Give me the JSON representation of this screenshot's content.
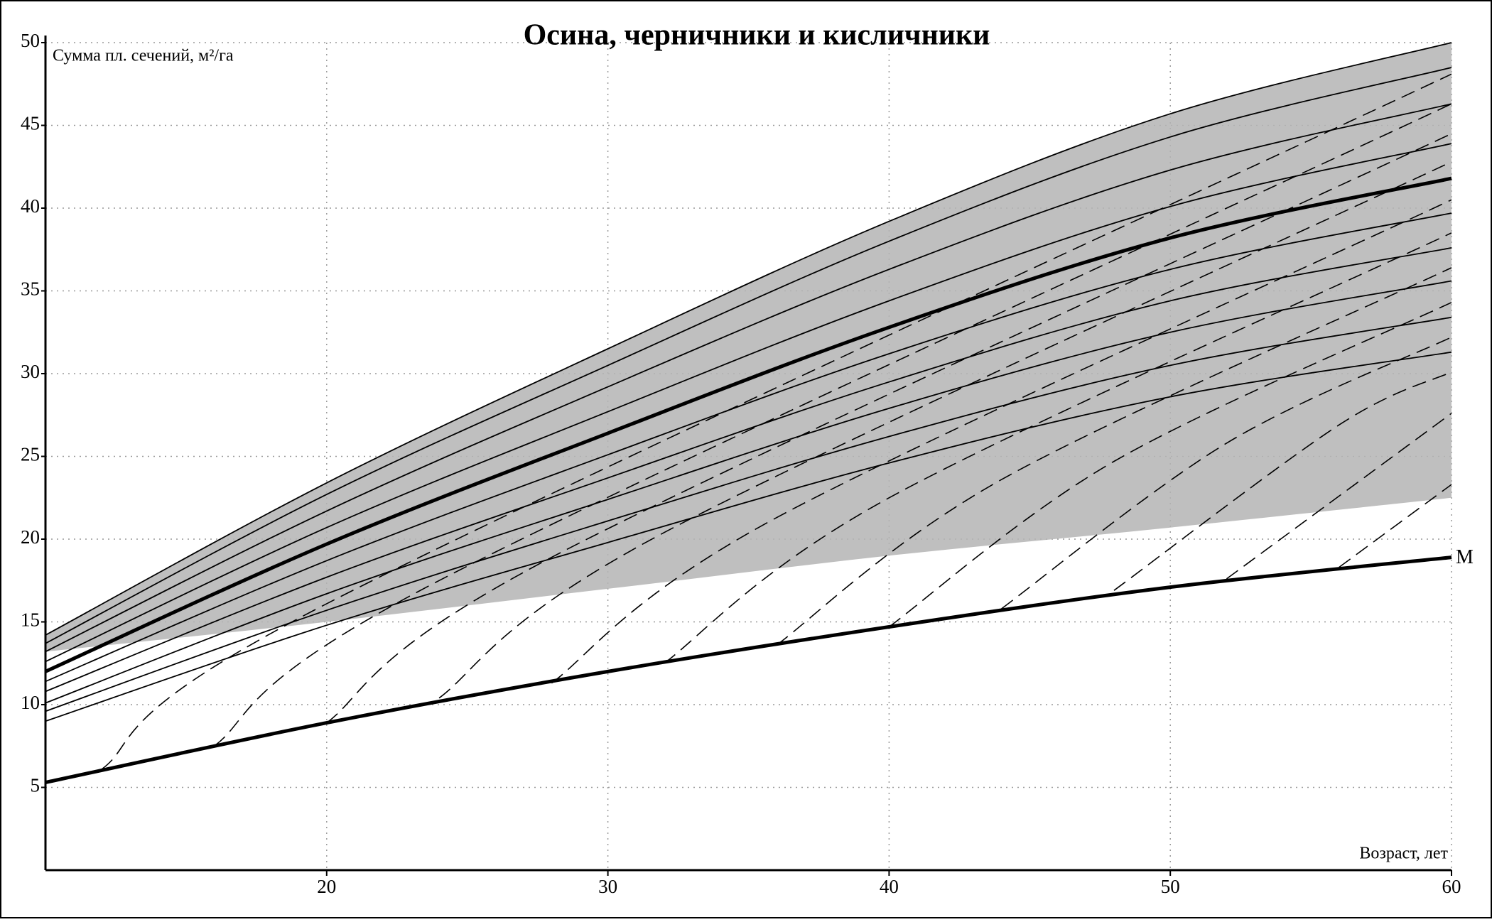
{
  "chart_data": {
    "type": "line",
    "title": "Осина, черничники и кисличники",
    "y_label": "Сумма пл. сечений, м²/га",
    "x_label": "Возраст, лет",
    "xlim": [
      10,
      60
    ],
    "ylim": [
      0,
      50
    ],
    "xticks": [
      20,
      30,
      40,
      50,
      60
    ],
    "yticks": [
      5,
      10,
      15,
      20,
      25,
      30,
      35,
      40,
      45,
      50
    ],
    "grid": true,
    "x": [
      10,
      20,
      30,
      40,
      50,
      60
    ],
    "band": {
      "color": "#b4b4b4",
      "lower": [
        13.2,
        15.0,
        17.0,
        19.0,
        20.7,
        22.5
      ]
    },
    "curves": [
      {
        "values": [
          14.2,
          23.4,
          31.5,
          39.2,
          45.7,
          50.0
        ]
      },
      {
        "values": [
          13.7,
          22.7,
          30.5,
          38.0,
          44.3,
          48.5
        ]
      },
      {
        "values": [
          13.2,
          21.7,
          29.2,
          36.3,
          42.3,
          46.3
        ]
      },
      {
        "values": [
          12.6,
          20.7,
          27.7,
          34.4,
          40.1,
          43.9
        ]
      },
      {
        "values": [
          11.4,
          18.7,
          25.1,
          31.2,
          36.3,
          39.7
        ]
      },
      {
        "values": [
          10.8,
          17.7,
          23.7,
          29.5,
          34.4,
          37.6
        ]
      },
      {
        "values": [
          10.1,
          16.7,
          22.4,
          27.9,
          32.5,
          35.6
        ]
      },
      {
        "values": [
          9.6,
          15.7,
          21.1,
          26.2,
          30.5,
          33.4
        ]
      },
      {
        "values": [
          9.0,
          14.8,
          19.8,
          24.6,
          28.6,
          31.3
        ]
      }
    ],
    "main_curve": {
      "values": [
        12.0,
        19.7,
        26.4,
        32.8,
        38.2,
        41.8
      ]
    },
    "m_curve": {
      "label": "M",
      "values": [
        5.3,
        8.9,
        12.0,
        14.7,
        17.1,
        18.9
      ]
    },
    "dashed": [
      {
        "x": [
          12,
          20,
          60
        ],
        "values": [
          6.1,
          16.1,
          48.1
        ]
      },
      {
        "x": [
          16,
          24,
          60
        ],
        "values": [
          7.5,
          17.5,
          46.3
        ]
      },
      {
        "x": [
          20,
          28,
          60
        ],
        "values": [
          8.9,
          18.9,
          44.5
        ]
      },
      {
        "x": [
          24,
          32,
          60
        ],
        "values": [
          10.4,
          20.4,
          42.8
        ]
      },
      {
        "x": [
          28,
          36,
          60
        ],
        "values": [
          11.3,
          21.3,
          40.5
        ]
      },
      {
        "x": [
          32,
          40,
          60
        ],
        "values": [
          12.5,
          22.5,
          38.5
        ]
      },
      {
        "x": [
          36,
          44,
          60
        ],
        "values": [
          13.6,
          23.6,
          36.4
        ]
      },
      {
        "x": [
          40,
          48,
          60
        ],
        "values": [
          14.7,
          24.7,
          34.3
        ]
      },
      {
        "x": [
          44,
          52,
          60
        ],
        "values": [
          15.8,
          25.8,
          32.2
        ]
      },
      {
        "x": [
          48,
          56,
          60
        ],
        "values": [
          16.9,
          26.9,
          30.1
        ]
      },
      {
        "x": [
          52,
          60
        ],
        "values": [
          17.6,
          27.6
        ]
      },
      {
        "x": [
          56,
          60
        ],
        "values": [
          18.3,
          23.3
        ]
      }
    ]
  }
}
